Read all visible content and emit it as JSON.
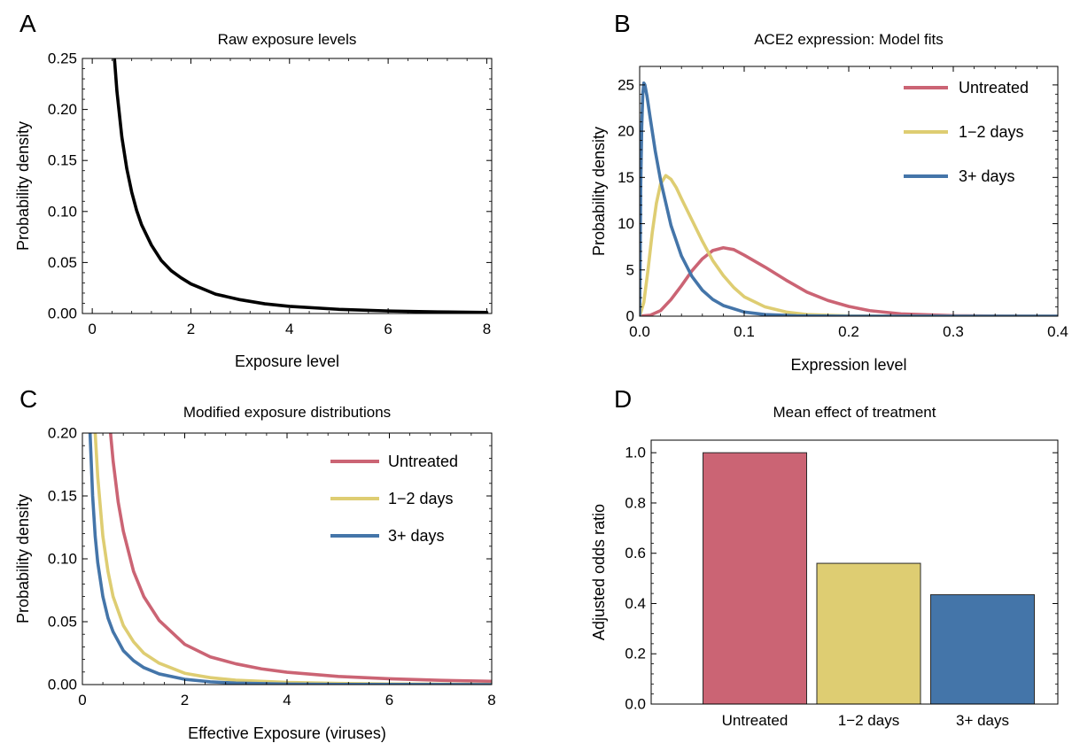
{
  "chart_data": [
    {
      "id": "A",
      "panel_letter": "A",
      "type": "line",
      "title": "Raw exposure levels",
      "xlabel": "Exposure level",
      "ylabel": "Probability density",
      "xlim": [
        -0.2,
        8.1
      ],
      "ylim": [
        0,
        0.25
      ],
      "xticks": [
        0,
        2,
        4,
        6,
        8
      ],
      "xtick_labels": [
        "0",
        "2",
        "4",
        "6",
        "8"
      ],
      "yticks": [
        0,
        0.05,
        0.1,
        0.15,
        0.2,
        0.25
      ],
      "ytick_labels": [
        "0.00",
        "0.05",
        "0.10",
        "0.15",
        "0.20",
        "0.25"
      ],
      "grid": false,
      "series": [
        {
          "color": "#000000",
          "x": [
            0.45,
            0.5,
            0.6,
            0.7,
            0.8,
            0.9,
            1.0,
            1.2,
            1.4,
            1.6,
            1.8,
            2.0,
            2.5,
            3.0,
            3.5,
            4.0,
            5.0,
            6.0,
            7.0,
            8.0
          ],
          "y": [
            0.25,
            0.218,
            0.173,
            0.142,
            0.119,
            0.101,
            0.087,
            0.067,
            0.052,
            0.042,
            0.035,
            0.029,
            0.019,
            0.0135,
            0.0095,
            0.007,
            0.0041,
            0.0025,
            0.0016,
            0.001
          ]
        }
      ]
    },
    {
      "id": "B",
      "panel_letter": "B",
      "type": "line",
      "title": "ACE2 expression: Model fits",
      "xlabel": "Expression level",
      "ylabel": "Probability density",
      "xlim": [
        0,
        0.4
      ],
      "ylim": [
        0,
        27
      ],
      "xticks": [
        0,
        0.1,
        0.2,
        0.3,
        0.4
      ],
      "xtick_labels": [
        "0.0",
        "0.1",
        "0.2",
        "0.3",
        "0.4"
      ],
      "yticks": [
        0,
        5,
        10,
        15,
        20,
        25
      ],
      "ytick_labels": [
        "0",
        "5",
        "10",
        "15",
        "20",
        "25"
      ],
      "grid": false,
      "legend_position": "top-right",
      "series": [
        {
          "name": "Untreated",
          "color": "#CB6474",
          "x": [
            0,
            0.01,
            0.02,
            0.03,
            0.04,
            0.05,
            0.06,
            0.07,
            0.08,
            0.09,
            0.1,
            0.12,
            0.14,
            0.16,
            0.18,
            0.2,
            0.22,
            0.25,
            0.3,
            0.35,
            0.4
          ],
          "y": [
            0,
            0.1,
            0.6,
            1.8,
            3.3,
            4.9,
            6.2,
            7.1,
            7.4,
            7.2,
            6.6,
            5.3,
            3.9,
            2.6,
            1.7,
            1.05,
            0.6,
            0.25,
            0.05,
            0.01,
            0
          ]
        },
        {
          "name": "1−2 days",
          "color": "#DECD72",
          "x": [
            0,
            0.004,
            0.008,
            0.012,
            0.016,
            0.02,
            0.025,
            0.03,
            0.035,
            0.04,
            0.05,
            0.06,
            0.07,
            0.08,
            0.09,
            0.1,
            0.12,
            0.14,
            0.16,
            0.2,
            0.25,
            0.4
          ],
          "y": [
            0,
            1.5,
            5.0,
            9.0,
            12.2,
            14.3,
            15.2,
            14.8,
            13.9,
            12.7,
            10.4,
            8.1,
            6.0,
            4.4,
            3.1,
            2.1,
            1.0,
            0.45,
            0.18,
            0.03,
            0,
            0
          ]
        },
        {
          "name": "3+ days",
          "color": "#4475A9",
          "x": [
            0,
            0.001,
            0.002,
            0.003,
            0.004,
            0.005,
            0.007,
            0.01,
            0.015,
            0.02,
            0.03,
            0.04,
            0.05,
            0.06,
            0.07,
            0.08,
            0.1,
            0.12,
            0.15,
            0.2,
            0.4
          ],
          "y": [
            0,
            14.0,
            20.5,
            24.0,
            25.2,
            25.0,
            23.8,
            21.5,
            17.8,
            14.7,
            9.8,
            6.5,
            4.3,
            2.8,
            1.8,
            1.15,
            0.45,
            0.17,
            0.04,
            0,
            0
          ]
        }
      ]
    },
    {
      "id": "C",
      "panel_letter": "C",
      "type": "line",
      "title": "Modified exposure distributions",
      "xlabel": "Effective Exposure (viruses)",
      "ylabel": "Probability density",
      "xlim": [
        0,
        8
      ],
      "ylim": [
        0,
        0.2
      ],
      "xticks": [
        0,
        2,
        4,
        6,
        8
      ],
      "xtick_labels": [
        "0",
        "2",
        "4",
        "6",
        "8"
      ],
      "yticks": [
        0,
        0.05,
        0.1,
        0.15,
        0.2
      ],
      "ytick_labels": [
        "0.00",
        "0.05",
        "0.10",
        "0.15",
        "0.20"
      ],
      "grid": false,
      "legend_position": "top-right",
      "series": [
        {
          "name": "Untreated",
          "color": "#CB6474",
          "x": [
            0.55,
            0.6,
            0.7,
            0.8,
            1.0,
            1.2,
            1.5,
            2.0,
            2.5,
            3.0,
            3.5,
            4.0,
            5.0,
            6.0,
            7.0,
            8.0
          ],
          "y": [
            0.2,
            0.178,
            0.145,
            0.122,
            0.09,
            0.07,
            0.051,
            0.032,
            0.022,
            0.0165,
            0.0125,
            0.0098,
            0.0065,
            0.0046,
            0.0034,
            0.0026
          ]
        },
        {
          "name": "1−2 days",
          "color": "#DECD72",
          "x": [
            0.25,
            0.3,
            0.4,
            0.5,
            0.6,
            0.8,
            1.0,
            1.2,
            1.5,
            2.0,
            2.5,
            3.0,
            4.0,
            5.0,
            6.0,
            8.0
          ],
          "y": [
            0.2,
            0.165,
            0.118,
            0.09,
            0.07,
            0.047,
            0.034,
            0.025,
            0.017,
            0.009,
            0.0055,
            0.0035,
            0.0017,
            0.0009,
            0.0005,
            0.0002
          ]
        },
        {
          "name": "3+ days",
          "color": "#4475A9",
          "x": [
            0.15,
            0.2,
            0.25,
            0.3,
            0.4,
            0.5,
            0.6,
            0.8,
            1.0,
            1.2,
            1.5,
            2.0,
            2.5,
            3.0,
            4.0,
            5.0,
            8.0
          ],
          "y": [
            0.2,
            0.15,
            0.118,
            0.097,
            0.07,
            0.053,
            0.042,
            0.027,
            0.019,
            0.0135,
            0.0085,
            0.0042,
            0.0022,
            0.0012,
            0.0004,
            0.0001,
            0
          ]
        }
      ]
    },
    {
      "id": "D",
      "panel_letter": "D",
      "type": "bar",
      "title": "Mean effect of treatment",
      "xlabel": "",
      "ylabel": "Adjusted odds ratio",
      "ylim": [
        0,
        1.05
      ],
      "yticks": [
        0,
        0.2,
        0.4,
        0.6,
        0.8,
        1.0
      ],
      "ytick_labels": [
        "0.0",
        "0.2",
        "0.4",
        "0.6",
        "0.8",
        "1.0"
      ],
      "grid": false,
      "categories": [
        "Untreated",
        "1−2 days",
        "3+ days"
      ],
      "values": [
        1.0,
        0.56,
        0.435
      ],
      "colors": [
        "#CB6474",
        "#DECD72",
        "#4475A9"
      ]
    }
  ]
}
